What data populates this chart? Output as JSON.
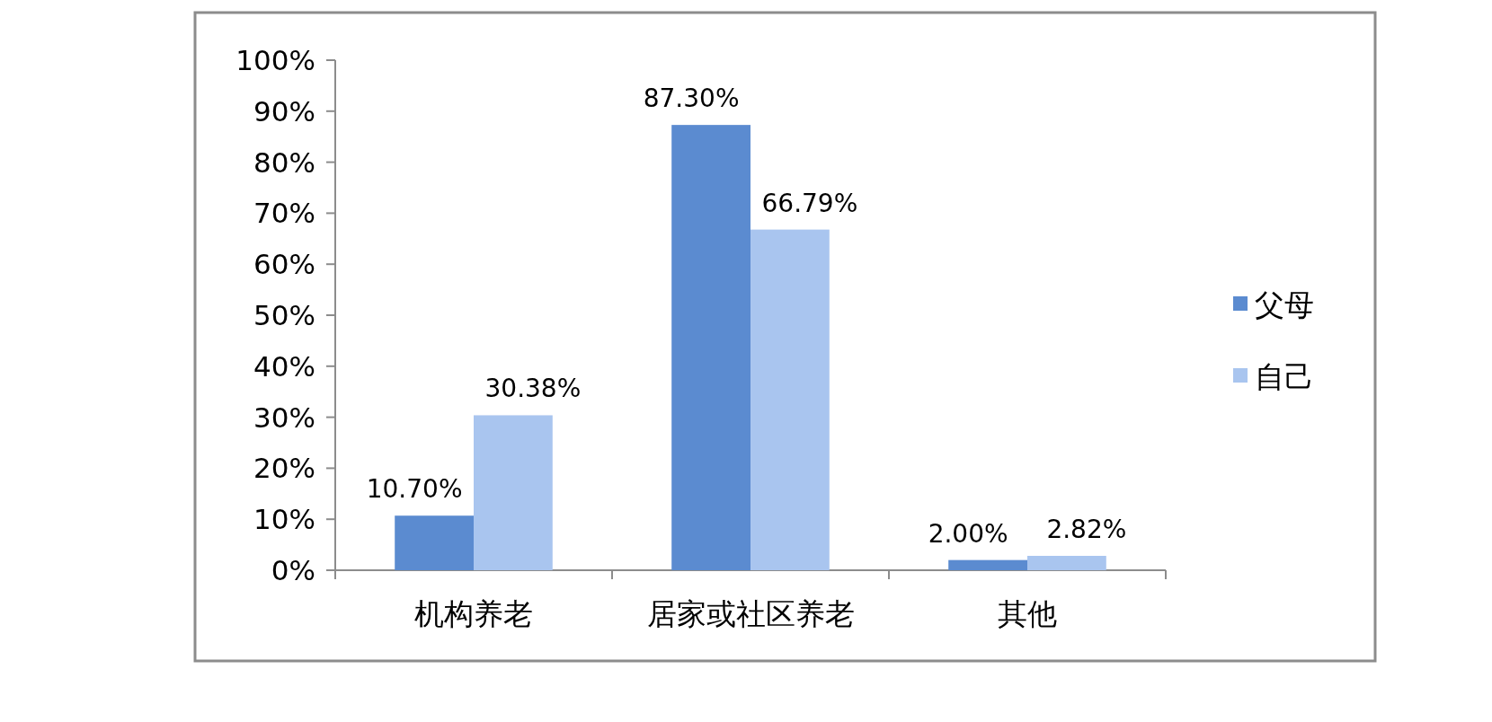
{
  "chart_data": {
    "type": "bar",
    "categories": [
      "机构养老",
      "居家或社区养老",
      "其他"
    ],
    "series": [
      {
        "name": "父母",
        "color": "#5b8bd0",
        "values": [
          10.7,
          87.3,
          2.0
        ],
        "value_labels": [
          "10.70%",
          "87.30%",
          "2.00%"
        ]
      },
      {
        "name": "自己",
        "color": "#a9c5ef",
        "values": [
          30.38,
          66.79,
          2.82
        ],
        "value_labels": [
          "30.38%",
          "66.79%",
          "2.82%"
        ]
      }
    ],
    "ylim": [
      0,
      100
    ],
    "yticks": [
      {
        "value": 0,
        "label": "0%"
      },
      {
        "value": 10,
        "label": "10%"
      },
      {
        "value": 20,
        "label": "20%"
      },
      {
        "value": 30,
        "label": "30%"
      },
      {
        "value": 40,
        "label": "40%"
      },
      {
        "value": 50,
        "label": "50%"
      },
      {
        "value": 60,
        "label": "60%"
      },
      {
        "value": 70,
        "label": "70%"
      },
      {
        "value": 80,
        "label": "80%"
      },
      {
        "value": 90,
        "label": "90%"
      },
      {
        "value": 100,
        "label": "100%"
      }
    ],
    "grid": false,
    "legend": "right"
  }
}
